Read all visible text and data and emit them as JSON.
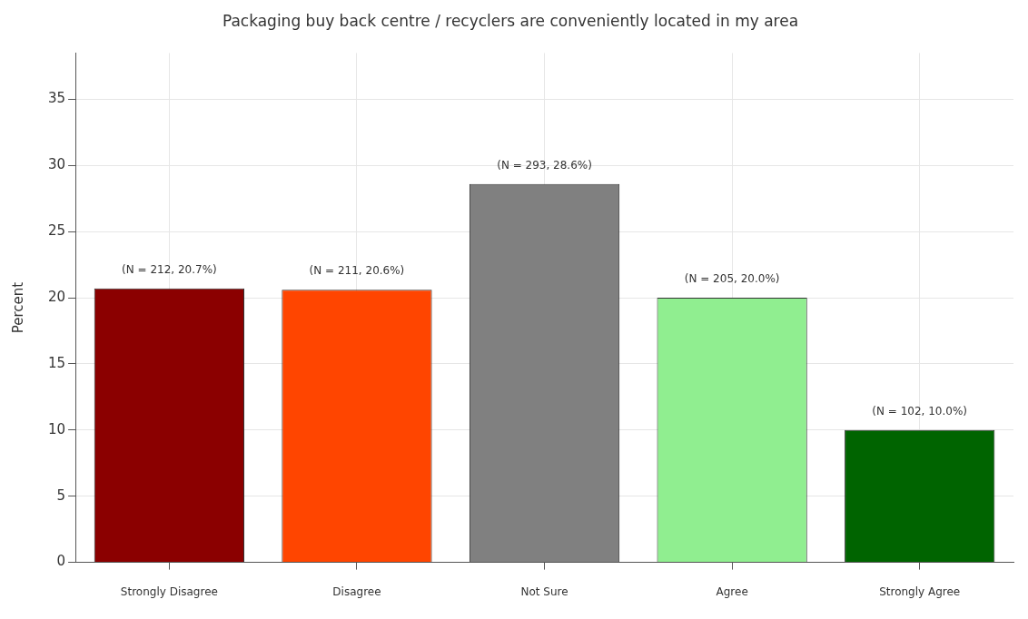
{
  "chart_data": {
    "type": "bar",
    "title": "Packaging buy back centre / recyclers are conveniently located in my area",
    "ylabel": "Percent",
    "categories": [
      "Strongly Disagree",
      "Disagree",
      "Not Sure",
      "Agree",
      "Strongly Agree"
    ],
    "values": [
      20.7,
      20.6,
      28.6,
      20.0,
      10.0
    ],
    "colors": [
      "#8b0000",
      "#ff4500",
      "#808080",
      "#90ee90",
      "#006400"
    ],
    "value_labels": [
      "(N = 212, 20.7%)",
      "(N = 211, 20.6%)",
      "(N = 293, 28.6%)",
      "(N = 205, 20.0%)",
      "(N = 102, 10.0%)"
    ],
    "ylim": [
      0,
      38.5
    ],
    "yticks": [
      0,
      5,
      10,
      15,
      20,
      25,
      30,
      35
    ],
    "grid": true
  }
}
